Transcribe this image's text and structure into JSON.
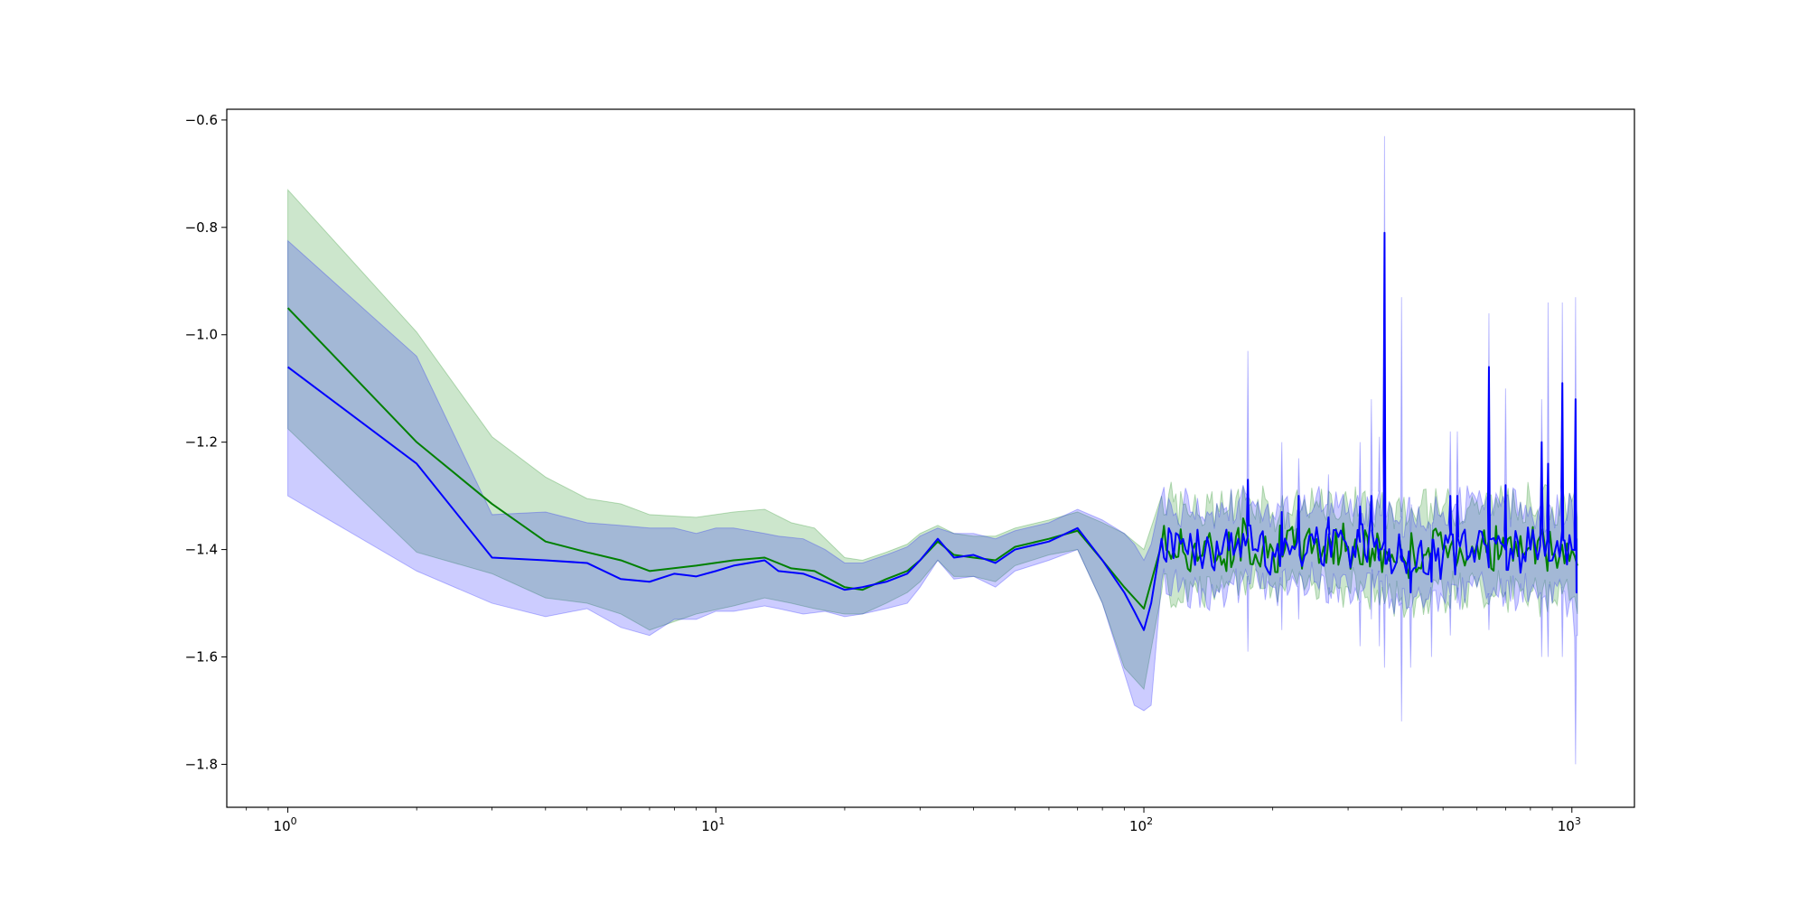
{
  "chart_data": {
    "type": "line",
    "title": "",
    "xlabel": "",
    "ylabel": "",
    "xscale": "log",
    "xlim": [
      0.72,
      1400
    ],
    "ylim": [
      -1.88,
      -0.58
    ],
    "grid": false,
    "legend": "none",
    "x_ticks": [
      {
        "value": 1,
        "base": "10",
        "exp": "0"
      },
      {
        "value": 10,
        "base": "10",
        "exp": "1"
      },
      {
        "value": 100,
        "base": "10",
        "exp": "2"
      },
      {
        "value": 1000,
        "base": "10",
        "exp": "3"
      }
    ],
    "y_ticks": [
      {
        "value": -0.6,
        "label": "−0.6"
      },
      {
        "value": -0.8,
        "label": "−0.8"
      },
      {
        "value": -1.0,
        "label": "−1.0"
      },
      {
        "value": -1.2,
        "label": "−1.2"
      },
      {
        "value": -1.4,
        "label": "−1.4"
      },
      {
        "value": -1.6,
        "label": "−1.6"
      },
      {
        "value": -1.8,
        "label": "−1.8"
      }
    ],
    "series": [
      {
        "color": "#008000",
        "band_color": "#008000",
        "points": [
          [
            1,
            -0.95,
            -1.175,
            -0.73
          ],
          [
            2,
            -1.2,
            -1.405,
            -0.995
          ],
          [
            3,
            -1.315,
            -1.445,
            -1.19
          ],
          [
            4,
            -1.385,
            -1.49,
            -1.265
          ],
          [
            5,
            -1.405,
            -1.5,
            -1.305
          ],
          [
            6,
            -1.42,
            -1.52,
            -1.315
          ],
          [
            7,
            -1.44,
            -1.55,
            -1.335
          ],
          [
            9,
            -1.43,
            -1.52,
            -1.34
          ],
          [
            11,
            -1.42,
            -1.505,
            -1.33
          ],
          [
            13,
            -1.415,
            -1.49,
            -1.325
          ],
          [
            15,
            -1.435,
            -1.5,
            -1.35
          ],
          [
            17,
            -1.44,
            -1.51,
            -1.36
          ],
          [
            20,
            -1.47,
            -1.52,
            -1.415
          ],
          [
            22,
            -1.475,
            -1.52,
            -1.42
          ],
          [
            25,
            -1.455,
            -1.5,
            -1.405
          ],
          [
            28,
            -1.44,
            -1.48,
            -1.39
          ],
          [
            30,
            -1.42,
            -1.46,
            -1.37
          ],
          [
            33,
            -1.385,
            -1.42,
            -1.355
          ],
          [
            36,
            -1.41,
            -1.45,
            -1.37
          ],
          [
            40,
            -1.415,
            -1.45,
            -1.375
          ],
          [
            45,
            -1.42,
            -1.46,
            -1.375
          ],
          [
            50,
            -1.395,
            -1.43,
            -1.36
          ],
          [
            60,
            -1.38,
            -1.41,
            -1.345
          ],
          [
            70,
            -1.365,
            -1.4,
            -1.33
          ],
          [
            80,
            -1.42,
            -1.5,
            -1.35
          ],
          [
            90,
            -1.47,
            -1.62,
            -1.37
          ],
          [
            100,
            -1.51,
            -1.66,
            -1.4
          ],
          [
            110,
            -1.39,
            -1.48,
            -1.3
          ],
          [
            130,
            -1.4,
            -1.47,
            -1.33
          ],
          [
            150,
            -1.405,
            -1.48,
            -1.33
          ],
          [
            175,
            -1.38,
            -1.45,
            -1.3
          ],
          [
            200,
            -1.4,
            -1.47,
            -1.33
          ],
          [
            250,
            -1.39,
            -1.46,
            -1.32
          ],
          [
            300,
            -1.395,
            -1.47,
            -1.32
          ],
          [
            400,
            -1.41,
            -1.49,
            -1.33
          ],
          [
            500,
            -1.4,
            -1.48,
            -1.32
          ],
          [
            600,
            -1.39,
            -1.47,
            -1.31
          ],
          [
            700,
            -1.4,
            -1.48,
            -1.32
          ],
          [
            800,
            -1.395,
            -1.48,
            -1.31
          ],
          [
            900,
            -1.41,
            -1.5,
            -1.32
          ],
          [
            1000,
            -1.4,
            -1.49,
            -1.31
          ],
          [
            1030,
            -1.43,
            -1.52,
            -1.34
          ]
        ]
      },
      {
        "color": "#0000ff",
        "band_color": "#0000ff",
        "points": [
          [
            1,
            -1.06,
            -1.3,
            -0.825
          ],
          [
            2,
            -1.24,
            -1.44,
            -1.04
          ],
          [
            3,
            -1.415,
            -1.5,
            -1.335
          ],
          [
            4,
            -1.42,
            -1.525,
            -1.33
          ],
          [
            5,
            -1.425,
            -1.51,
            -1.35
          ],
          [
            6,
            -1.455,
            -1.545,
            -1.355
          ],
          [
            7,
            -1.46,
            -1.56,
            -1.36
          ],
          [
            8,
            -1.445,
            -1.53,
            -1.36
          ],
          [
            9,
            -1.45,
            -1.53,
            -1.37
          ],
          [
            10,
            -1.44,
            -1.515,
            -1.36
          ],
          [
            11,
            -1.43,
            -1.515,
            -1.36
          ],
          [
            13,
            -1.42,
            -1.505,
            -1.37
          ],
          [
            14,
            -1.44,
            -1.51,
            -1.375
          ],
          [
            16,
            -1.445,
            -1.52,
            -1.38
          ],
          [
            18,
            -1.46,
            -1.515,
            -1.4
          ],
          [
            20,
            -1.475,
            -1.525,
            -1.425
          ],
          [
            22,
            -1.47,
            -1.52,
            -1.425
          ],
          [
            25,
            -1.46,
            -1.51,
            -1.41
          ],
          [
            28,
            -1.445,
            -1.5,
            -1.395
          ],
          [
            30,
            -1.42,
            -1.47,
            -1.375
          ],
          [
            33,
            -1.38,
            -1.42,
            -1.36
          ],
          [
            36,
            -1.415,
            -1.455,
            -1.37
          ],
          [
            40,
            -1.41,
            -1.45,
            -1.37
          ],
          [
            45,
            -1.425,
            -1.47,
            -1.38
          ],
          [
            50,
            -1.4,
            -1.44,
            -1.365
          ],
          [
            60,
            -1.385,
            -1.42,
            -1.35
          ],
          [
            70,
            -1.36,
            -1.4,
            -1.325
          ],
          [
            80,
            -1.42,
            -1.5,
            -1.345
          ],
          [
            90,
            -1.48,
            -1.63,
            -1.37
          ],
          [
            95,
            -1.515,
            -1.69,
            -1.39
          ],
          [
            100,
            -1.55,
            -1.7,
            -1.42
          ],
          [
            104,
            -1.5,
            -1.69,
            -1.39
          ],
          [
            110,
            -1.38,
            -1.46,
            -1.3
          ],
          [
            130,
            -1.4,
            -1.47,
            -1.33
          ],
          [
            150,
            -1.41,
            -1.48,
            -1.34
          ],
          [
            175,
            -1.375,
            -1.45,
            -1.3
          ],
          [
            200,
            -1.405,
            -1.47,
            -1.335
          ],
          [
            250,
            -1.39,
            -1.46,
            -1.32
          ],
          [
            300,
            -1.4,
            -1.47,
            -1.33
          ],
          [
            350,
            -1.38,
            -1.45,
            -1.31
          ],
          [
            400,
            -1.42,
            -1.5,
            -1.34
          ],
          [
            500,
            -1.41,
            -1.49,
            -1.33
          ],
          [
            600,
            -1.39,
            -1.47,
            -1.31
          ],
          [
            700,
            -1.4,
            -1.48,
            -1.32
          ],
          [
            800,
            -1.4,
            -1.48,
            -1.32
          ],
          [
            900,
            -1.42,
            -1.5,
            -1.33
          ],
          [
            1000,
            -1.4,
            -1.49,
            -1.31
          ],
          [
            1030,
            -1.48,
            -1.56,
            -1.38
          ]
        ],
        "spikes": [
          [
            175,
            -1.27,
            -1.59,
            -1.03
          ],
          [
            210,
            -1.33,
            -1.55,
            -1.2
          ],
          [
            230,
            -1.3,
            -1.53,
            -1.23
          ],
          [
            270,
            -1.34,
            -1.5,
            -1.26
          ],
          [
            320,
            -1.32,
            -1.58,
            -1.2
          ],
          [
            340,
            -1.3,
            -1.53,
            -1.12
          ],
          [
            355,
            -1.4,
            -1.58,
            -1.19
          ],
          [
            365,
            -0.81,
            -1.62,
            -0.63
          ],
          [
            400,
            -1.4,
            -1.72,
            -0.93
          ],
          [
            420,
            -1.48,
            -1.62,
            -1.39
          ],
          [
            470,
            -1.46,
            -1.6,
            -1.4
          ],
          [
            520,
            -1.3,
            -1.56,
            -1.18
          ],
          [
            540,
            -1.3,
            -1.5,
            -1.18
          ],
          [
            640,
            -1.06,
            -1.55,
            -0.96
          ],
          [
            700,
            -1.28,
            -1.5,
            -1.1
          ],
          [
            850,
            -1.2,
            -1.6,
            -1.12
          ],
          [
            880,
            -1.24,
            -1.6,
            -0.94
          ],
          [
            950,
            -1.09,
            -1.6,
            -0.94
          ],
          [
            1020,
            -1.12,
            -1.8,
            -0.93
          ]
        ]
      }
    ]
  }
}
